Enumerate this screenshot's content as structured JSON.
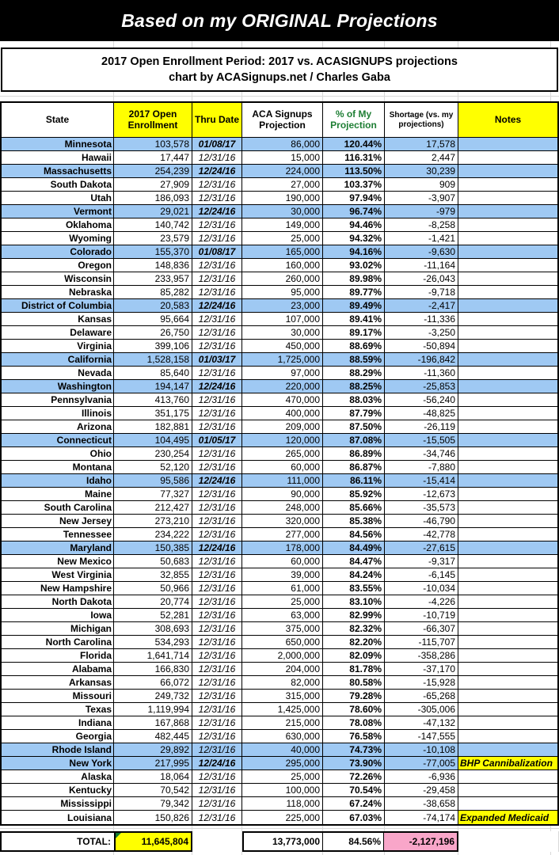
{
  "title": "Based on my ORIGINAL Projections",
  "subtitle": {
    "line1": "2017 Open Enrollment Period: 2017 vs. ACASIGNUPS projections",
    "line2": "chart by ACASignups.net / Charles Gaba"
  },
  "colors": {
    "row_highlight_blue": "#9FC9F3",
    "header_yellow": "#FFFF00",
    "total_pink": "#F9A6C9",
    "pct_header_green": "#1E7E34",
    "note_corner_green": "#127A33"
  },
  "table": {
    "headers": {
      "state": "State",
      "enrollment": "2017 Open Enrollment",
      "thru": "Thru Date",
      "projection": "ACA Signups Projection",
      "pct": "% of My Projection",
      "shortage": "Shortage (vs. my projections)",
      "notes": "Notes"
    },
    "rows": [
      {
        "state": "Minnesota",
        "enrollment": "103,578",
        "thru": "01/08/17",
        "thru_bold": true,
        "projection": "86,000",
        "pct": "120.44%",
        "shortage": "17,578",
        "note": "",
        "highlight": true
      },
      {
        "state": "Hawaii",
        "enrollment": "17,447",
        "thru": "12/31/16",
        "thru_bold": false,
        "projection": "15,000",
        "pct": "116.31%",
        "shortage": "2,447",
        "note": "",
        "highlight": false
      },
      {
        "state": "Massachusetts",
        "enrollment": "254,239",
        "thru": "12/24/16",
        "thru_bold": true,
        "projection": "224,000",
        "pct": "113.50%",
        "shortage": "30,239",
        "note": "",
        "highlight": true
      },
      {
        "state": "South Dakota",
        "enrollment": "27,909",
        "thru": "12/31/16",
        "thru_bold": false,
        "projection": "27,000",
        "pct": "103.37%",
        "shortage": "909",
        "note": "",
        "highlight": false
      },
      {
        "state": "Utah",
        "enrollment": "186,093",
        "thru": "12/31/16",
        "thru_bold": false,
        "projection": "190,000",
        "pct": "97.94%",
        "shortage": "-3,907",
        "note": "",
        "highlight": false
      },
      {
        "state": "Vermont",
        "enrollment": "29,021",
        "thru": "12/24/16",
        "thru_bold": true,
        "projection": "30,000",
        "pct": "96.74%",
        "shortage": "-979",
        "note": "",
        "highlight": true
      },
      {
        "state": "Oklahoma",
        "enrollment": "140,742",
        "thru": "12/31/16",
        "thru_bold": false,
        "projection": "149,000",
        "pct": "94.46%",
        "shortage": "-8,258",
        "note": "",
        "highlight": false
      },
      {
        "state": "Wyoming",
        "enrollment": "23,579",
        "thru": "12/31/16",
        "thru_bold": false,
        "projection": "25,000",
        "pct": "94.32%",
        "shortage": "-1,421",
        "note": "",
        "highlight": false
      },
      {
        "state": "Colorado",
        "enrollment": "155,370",
        "thru": "01/08/17",
        "thru_bold": true,
        "projection": "165,000",
        "pct": "94.16%",
        "shortage": "-9,630",
        "note": "",
        "highlight": true
      },
      {
        "state": "Oregon",
        "enrollment": "148,836",
        "thru": "12/31/16",
        "thru_bold": false,
        "projection": "160,000",
        "pct": "93.02%",
        "shortage": "-11,164",
        "note": "",
        "highlight": false
      },
      {
        "state": "Wisconsin",
        "enrollment": "233,957",
        "thru": "12/31/16",
        "thru_bold": false,
        "projection": "260,000",
        "pct": "89.98%",
        "shortage": "-26,043",
        "note": "",
        "highlight": false
      },
      {
        "state": "Nebraska",
        "enrollment": "85,282",
        "thru": "12/31/16",
        "thru_bold": false,
        "projection": "95,000",
        "pct": "89.77%",
        "shortage": "-9,718",
        "note": "",
        "highlight": false
      },
      {
        "state": "District of Columbia",
        "enrollment": "20,583",
        "thru": "12/24/16",
        "thru_bold": true,
        "projection": "23,000",
        "pct": "89.49%",
        "shortage": "-2,417",
        "note": "",
        "highlight": true
      },
      {
        "state": "Kansas",
        "enrollment": "95,664",
        "thru": "12/31/16",
        "thru_bold": false,
        "projection": "107,000",
        "pct": "89.41%",
        "shortage": "-11,336",
        "note": "",
        "highlight": false
      },
      {
        "state": "Delaware",
        "enrollment": "26,750",
        "thru": "12/31/16",
        "thru_bold": false,
        "projection": "30,000",
        "pct": "89.17%",
        "shortage": "-3,250",
        "note": "",
        "highlight": false
      },
      {
        "state": "Virginia",
        "enrollment": "399,106",
        "thru": "12/31/16",
        "thru_bold": false,
        "projection": "450,000",
        "pct": "88.69%",
        "shortage": "-50,894",
        "note": "",
        "highlight": false
      },
      {
        "state": "California",
        "enrollment": "1,528,158",
        "thru": "01/03/17",
        "thru_bold": true,
        "projection": "1,725,000",
        "pct": "88.59%",
        "shortage": "-196,842",
        "note": "",
        "highlight": true
      },
      {
        "state": "Nevada",
        "enrollment": "85,640",
        "thru": "12/31/16",
        "thru_bold": false,
        "projection": "97,000",
        "pct": "88.29%",
        "shortage": "-11,360",
        "note": "",
        "highlight": false
      },
      {
        "state": "Washington",
        "enrollment": "194,147",
        "thru": "12/24/16",
        "thru_bold": true,
        "projection": "220,000",
        "pct": "88.25%",
        "shortage": "-25,853",
        "note": "",
        "highlight": true
      },
      {
        "state": "Pennsylvania",
        "enrollment": "413,760",
        "thru": "12/31/16",
        "thru_bold": false,
        "projection": "470,000",
        "pct": "88.03%",
        "shortage": "-56,240",
        "note": "",
        "highlight": false
      },
      {
        "state": "Illinois",
        "enrollment": "351,175",
        "thru": "12/31/16",
        "thru_bold": false,
        "projection": "400,000",
        "pct": "87.79%",
        "shortage": "-48,825",
        "note": "",
        "highlight": false
      },
      {
        "state": "Arizona",
        "enrollment": "182,881",
        "thru": "12/31/16",
        "thru_bold": false,
        "projection": "209,000",
        "pct": "87.50%",
        "shortage": "-26,119",
        "note": "",
        "highlight": false
      },
      {
        "state": "Connecticut",
        "enrollment": "104,495",
        "thru": "01/05/17",
        "thru_bold": true,
        "projection": "120,000",
        "pct": "87.08%",
        "shortage": "-15,505",
        "note": "",
        "highlight": true
      },
      {
        "state": "Ohio",
        "enrollment": "230,254",
        "thru": "12/31/16",
        "thru_bold": false,
        "projection": "265,000",
        "pct": "86.89%",
        "shortage": "-34,746",
        "note": "",
        "highlight": false
      },
      {
        "state": "Montana",
        "enrollment": "52,120",
        "thru": "12/31/16",
        "thru_bold": false,
        "projection": "60,000",
        "pct": "86.87%",
        "shortage": "-7,880",
        "note": "",
        "highlight": false
      },
      {
        "state": "Idaho",
        "enrollment": "95,586",
        "thru": "12/24/16",
        "thru_bold": true,
        "projection": "111,000",
        "pct": "86.11%",
        "shortage": "-15,414",
        "note": "",
        "highlight": true
      },
      {
        "state": "Maine",
        "enrollment": "77,327",
        "thru": "12/31/16",
        "thru_bold": false,
        "projection": "90,000",
        "pct": "85.92%",
        "shortage": "-12,673",
        "note": "",
        "highlight": false
      },
      {
        "state": "South Carolina",
        "enrollment": "212,427",
        "thru": "12/31/16",
        "thru_bold": false,
        "projection": "248,000",
        "pct": "85.66%",
        "shortage": "-35,573",
        "note": "",
        "highlight": false
      },
      {
        "state": "New Jersey",
        "enrollment": "273,210",
        "thru": "12/31/16",
        "thru_bold": false,
        "projection": "320,000",
        "pct": "85.38%",
        "shortage": "-46,790",
        "note": "",
        "highlight": false
      },
      {
        "state": "Tennessee",
        "enrollment": "234,222",
        "thru": "12/31/16",
        "thru_bold": false,
        "projection": "277,000",
        "pct": "84.56%",
        "shortage": "-42,778",
        "note": "",
        "highlight": false
      },
      {
        "state": "Maryland",
        "enrollment": "150,385",
        "thru": "12/24/16",
        "thru_bold": true,
        "projection": "178,000",
        "pct": "84.49%",
        "shortage": "-27,615",
        "note": "",
        "highlight": true
      },
      {
        "state": "New Mexico",
        "enrollment": "50,683",
        "thru": "12/31/16",
        "thru_bold": false,
        "projection": "60,000",
        "pct": "84.47%",
        "shortage": "-9,317",
        "note": "",
        "highlight": false
      },
      {
        "state": "West Virginia",
        "enrollment": "32,855",
        "thru": "12/31/16",
        "thru_bold": false,
        "projection": "39,000",
        "pct": "84.24%",
        "shortage": "-6,145",
        "note": "",
        "highlight": false
      },
      {
        "state": "New Hampshire",
        "enrollment": "50,966",
        "thru": "12/31/16",
        "thru_bold": false,
        "projection": "61,000",
        "pct": "83.55%",
        "shortage": "-10,034",
        "note": "",
        "highlight": false
      },
      {
        "state": "North Dakota",
        "enrollment": "20,774",
        "thru": "12/31/16",
        "thru_bold": false,
        "projection": "25,000",
        "pct": "83.10%",
        "shortage": "-4,226",
        "note": "",
        "highlight": false
      },
      {
        "state": "Iowa",
        "enrollment": "52,281",
        "thru": "12/31/16",
        "thru_bold": false,
        "projection": "63,000",
        "pct": "82.99%",
        "shortage": "-10,719",
        "note": "",
        "highlight": false
      },
      {
        "state": "Michigan",
        "enrollment": "308,693",
        "thru": "12/31/16",
        "thru_bold": false,
        "projection": "375,000",
        "pct": "82.32%",
        "shortage": "-66,307",
        "note": "",
        "highlight": false
      },
      {
        "state": "North Carolina",
        "enrollment": "534,293",
        "thru": "12/31/16",
        "thru_bold": false,
        "projection": "650,000",
        "pct": "82.20%",
        "shortage": "-115,707",
        "note": "",
        "highlight": false
      },
      {
        "state": "Florida",
        "enrollment": "1,641,714",
        "thru": "12/31/16",
        "thru_bold": false,
        "projection": "2,000,000",
        "pct": "82.09%",
        "shortage": "-358,286",
        "note": "",
        "highlight": false
      },
      {
        "state": "Alabama",
        "enrollment": "166,830",
        "thru": "12/31/16",
        "thru_bold": false,
        "projection": "204,000",
        "pct": "81.78%",
        "shortage": "-37,170",
        "note": "",
        "highlight": false
      },
      {
        "state": "Arkansas",
        "enrollment": "66,072",
        "thru": "12/31/16",
        "thru_bold": false,
        "projection": "82,000",
        "pct": "80.58%",
        "shortage": "-15,928",
        "note": "",
        "highlight": false
      },
      {
        "state": "Missouri",
        "enrollment": "249,732",
        "thru": "12/31/16",
        "thru_bold": false,
        "projection": "315,000",
        "pct": "79.28%",
        "shortage": "-65,268",
        "note": "",
        "highlight": false
      },
      {
        "state": "Texas",
        "enrollment": "1,119,994",
        "thru": "12/31/16",
        "thru_bold": false,
        "projection": "1,425,000",
        "pct": "78.60%",
        "shortage": "-305,006",
        "note": "",
        "highlight": false
      },
      {
        "state": "Indiana",
        "enrollment": "167,868",
        "thru": "12/31/16",
        "thru_bold": false,
        "projection": "215,000",
        "pct": "78.08%",
        "shortage": "-47,132",
        "note": "",
        "highlight": false
      },
      {
        "state": "Georgia",
        "enrollment": "482,445",
        "thru": "12/31/16",
        "thru_bold": false,
        "projection": "630,000",
        "pct": "76.58%",
        "shortage": "-147,555",
        "note": "",
        "highlight": false
      },
      {
        "state": "Rhode Island",
        "enrollment": "29,892",
        "thru": "12/31/16",
        "thru_bold": false,
        "projection": "40,000",
        "pct": "74.73%",
        "shortage": "-10,108",
        "note": "",
        "highlight": true
      },
      {
        "state": "New York",
        "enrollment": "217,995",
        "thru": "12/24/16",
        "thru_bold": true,
        "projection": "295,000",
        "pct": "73.90%",
        "shortage": "-77,005",
        "note": "BHP Cannibalization",
        "highlight": true
      },
      {
        "state": "Alaska",
        "enrollment": "18,064",
        "thru": "12/31/16",
        "thru_bold": false,
        "projection": "25,000",
        "pct": "72.26%",
        "shortage": "-6,936",
        "note": "",
        "highlight": false
      },
      {
        "state": "Kentucky",
        "enrollment": "70,542",
        "thru": "12/31/16",
        "thru_bold": false,
        "projection": "100,000",
        "pct": "70.54%",
        "shortage": "-29,458",
        "note": "",
        "highlight": false
      },
      {
        "state": "Mississippi",
        "enrollment": "79,342",
        "thru": "12/31/16",
        "thru_bold": false,
        "projection": "118,000",
        "pct": "67.24%",
        "shortage": "-38,658",
        "note": "",
        "highlight": false
      },
      {
        "state": "Louisiana",
        "enrollment": "150,826",
        "thru": "12/31/16",
        "thru_bold": false,
        "projection": "225,000",
        "pct": "67.03%",
        "shortage": "-74,174",
        "note": "Expanded Medicaid",
        "highlight": false
      }
    ],
    "total": {
      "label": "TOTAL:",
      "enrollment": "11,645,804",
      "projection": "13,773,000",
      "pct": "84.56%",
      "shortage": "-2,127,196"
    }
  }
}
